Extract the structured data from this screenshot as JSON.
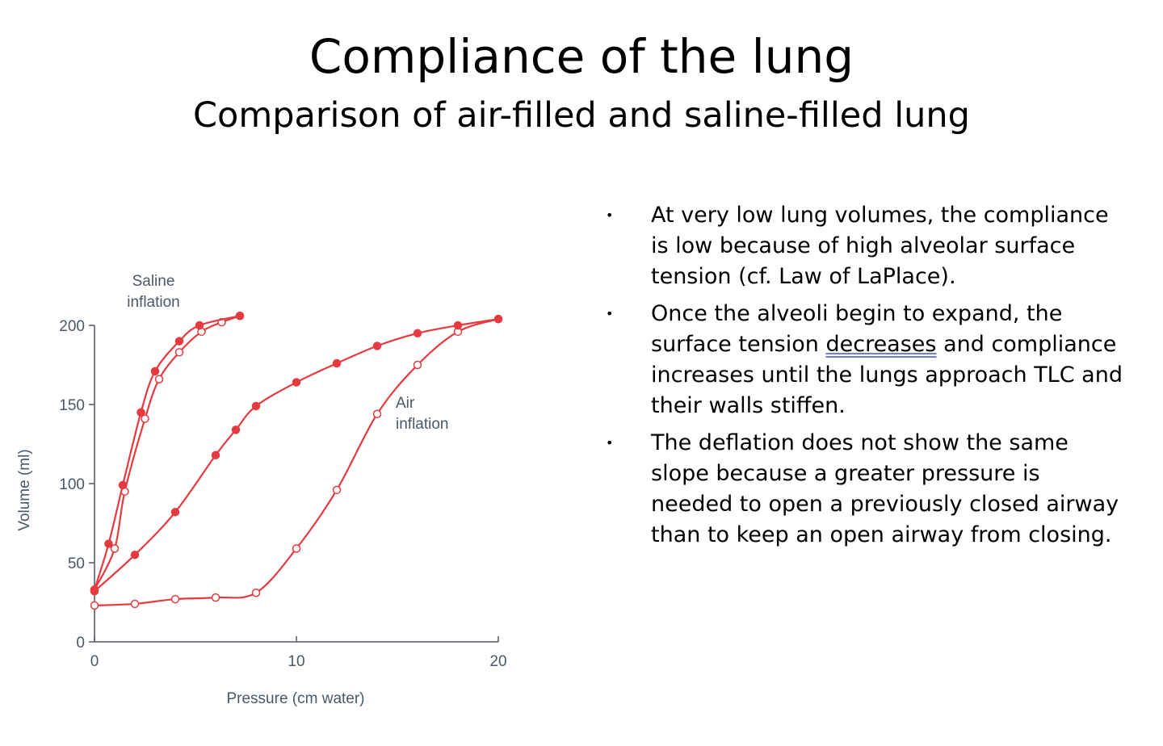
{
  "header": {
    "title": "Compliance of the lung",
    "subtitle": "Comparison of air-filled and saline-filled lung"
  },
  "bullets": [
    [
      "At very low lung volumes, the compliance is low because of high alveolar surface tension (cf. Law of LaPlace)."
    ],
    [
      "Once the alveoli begin to expand, the surface tension ",
      "decreases",
      " and compliance increases until the lungs approach TLC and their walls stiffen."
    ],
    [
      "The deflation does not show the same slope because a greater pressure is needed to open a previously closed airway than to keep an open airway from closing."
    ]
  ],
  "chart_data": {
    "type": "line",
    "x_label": "Pressure (cm water)",
    "y_label": "Volume (ml)",
    "xlim": [
      0,
      20
    ],
    "xticks": [
      0,
      10,
      20
    ],
    "ylim": [
      0,
      200
    ],
    "yticks": [
      0,
      50,
      100,
      150,
      200
    ],
    "annotations": [
      "Saline inflation",
      "Air inflation"
    ],
    "series": [
      {
        "color": "#e53a3f",
        "marker": "open",
        "x": [
          0,
          2,
          4,
          6,
          8,
          10,
          12,
          14,
          16,
          18,
          20
        ],
        "values": [
          23,
          24,
          27,
          28,
          31,
          59,
          96,
          144,
          175,
          196,
          204
        ]
      },
      {
        "color": "#e53a3f",
        "marker": "filled",
        "x": [
          0,
          2,
          4,
          6,
          7,
          8,
          10,
          12,
          14,
          16,
          18,
          20
        ],
        "values": [
          32,
          55,
          82,
          118,
          134,
          149,
          164,
          176,
          187,
          195,
          200,
          204
        ]
      },
      {
        "color": "#e53a3f",
        "marker": "open",
        "x": [
          0,
          1,
          1.5,
          2.5,
          3.2,
          4.2,
          5.3,
          6.3,
          7.2
        ],
        "values": [
          33,
          59,
          95,
          141,
          166,
          183,
          196,
          202,
          206
        ]
      },
      {
        "color": "#e53a3f",
        "marker": "filled",
        "x": [
          0,
          0.7,
          1.4,
          2.3,
          3,
          4.2,
          5.2,
          7.2
        ],
        "values": [
          33,
          62,
          99,
          145,
          171,
          190,
          200,
          206
        ]
      }
    ]
  }
}
